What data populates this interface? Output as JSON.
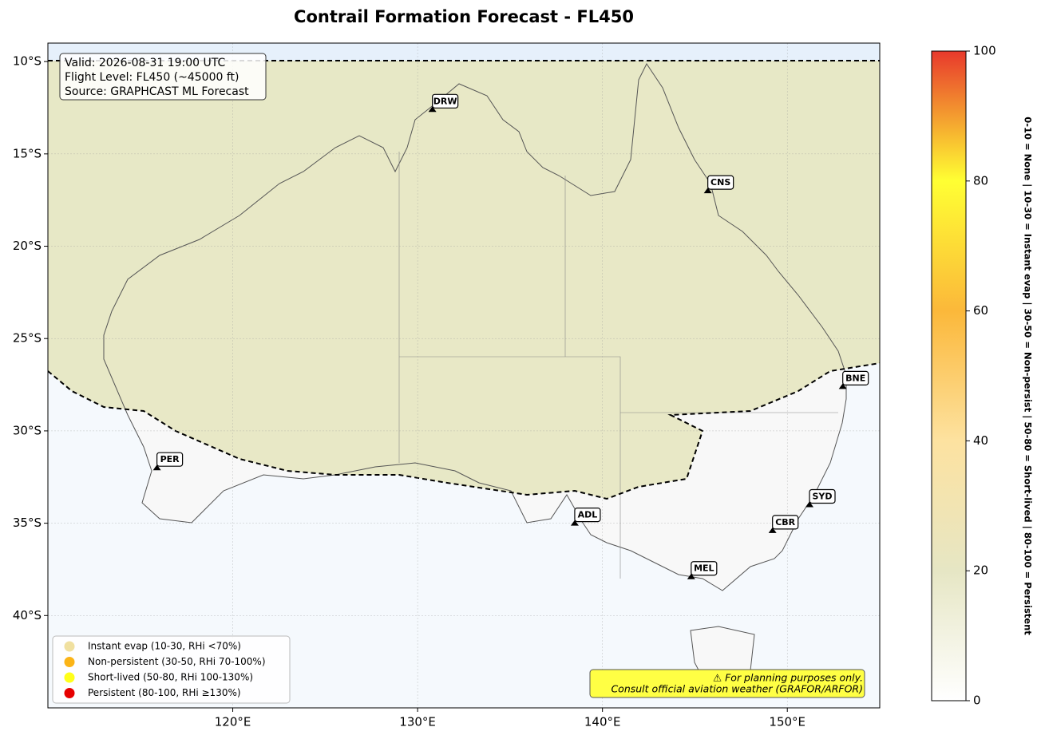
{
  "chart_data": {
    "type": "map",
    "title": "Contrail Formation Forecast - FL450",
    "info_lines": [
      "Valid: 2026-08-31 19:00 UTC",
      "Flight Level: FL450 (~45000 ft)",
      "Source: GRAPHCAST ML Forecast"
    ],
    "xlim": [
      110,
      155
    ],
    "ylim": [
      -45,
      -9
    ],
    "xticks": [
      {
        "value": 120,
        "label": "120°E"
      },
      {
        "value": 130,
        "label": "130°E"
      },
      {
        "value": 140,
        "label": "140°E"
      },
      {
        "value": 150,
        "label": "150°E"
      }
    ],
    "yticks": [
      {
        "value": -10,
        "label": "10°S"
      },
      {
        "value": -15,
        "label": "15°S"
      },
      {
        "value": -20,
        "label": "20°S"
      },
      {
        "value": -25,
        "label": "25°S"
      },
      {
        "value": -30,
        "label": "30°S"
      },
      {
        "value": -35,
        "label": "35°S"
      },
      {
        "value": -40,
        "label": "40°S"
      }
    ],
    "grid": true,
    "airports": [
      {
        "name": "DRW",
        "lon": 130.8,
        "lat": -12.6
      },
      {
        "name": "CNS",
        "lon": 145.7,
        "lat": -17.0
      },
      {
        "name": "BNE",
        "lon": 153.0,
        "lat": -27.6
      },
      {
        "name": "PER",
        "lon": 115.9,
        "lat": -32.0
      },
      {
        "name": "ADL",
        "lon": 138.5,
        "lat": -35.0
      },
      {
        "name": "SYD",
        "lon": 151.2,
        "lat": -34.0
      },
      {
        "name": "CBR",
        "lon": 149.2,
        "lat": -35.4
      },
      {
        "name": "MEL",
        "lon": 144.8,
        "lat": -37.9
      }
    ],
    "legend": [
      {
        "label": "Instant evap (10-30, RHi <70%)",
        "color": "#f0e0a0"
      },
      {
        "label": "Non-persistent (30-50, RHi 70-100%)",
        "color": "#fbb417"
      },
      {
        "label": "Short-lived (50-80, RHi 100-130%)",
        "color": "#ffff1a"
      },
      {
        "label": "Persistent (80-100, RHi ≥130%)",
        "color": "#e60000"
      }
    ],
    "disclaimer": [
      "⚠ For planning purposes only.",
      "Consult official aviation weather (GRAFOR/ARFOR)"
    ],
    "colorbar": {
      "lim": [
        0,
        100
      ],
      "ticks": [
        0,
        20,
        40,
        60,
        80,
        100
      ],
      "label": "0-10 = None  |  10-30 = Instant evap  |  30-50 = Non-persist  |  50-80 = Short-lived  |  80-100 = Persistent",
      "stops": [
        {
          "value": 0,
          "color": "#ffffff"
        },
        {
          "value": 20,
          "color": "#e6e6c4"
        },
        {
          "value": 40,
          "color": "#fde2a0"
        },
        {
          "value": 60,
          "color": "#fbb83a"
        },
        {
          "value": 80,
          "color": "#ffff33"
        },
        {
          "value": 100,
          "color": "#e8392c"
        }
      ]
    }
  }
}
